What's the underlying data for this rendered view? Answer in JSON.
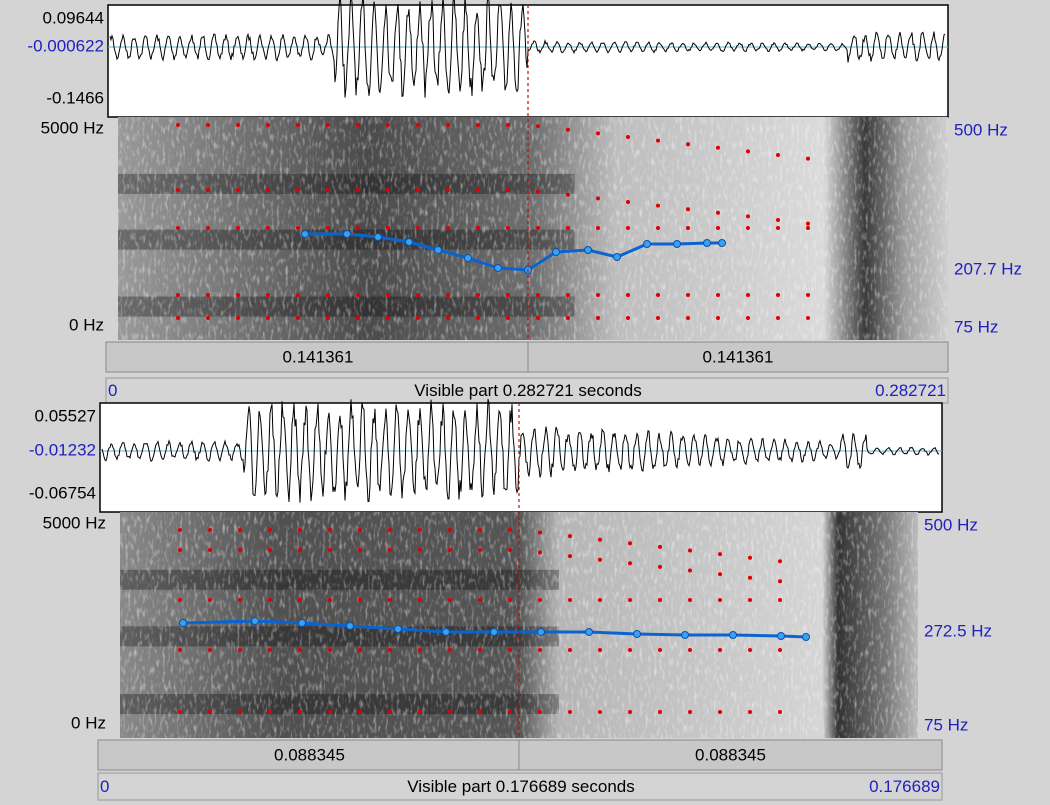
{
  "panels": [
    {
      "waveform": {
        "max": "0.09644",
        "cursor_value": "-0.000622",
        "min": "-0.1466"
      },
      "spectrogram": {
        "freq_max": "5000 Hz",
        "freq_min": "0 Hz",
        "pitch_max": "500 Hz",
        "pitch_cursor": "207.7 Hz",
        "pitch_min": "75 Hz"
      },
      "time_bar": {
        "left": "0.141361",
        "right": "0.141361"
      },
      "visible": {
        "start": "0",
        "label": "Visible part 0.282721 seconds",
        "end": "0.282721"
      }
    },
    {
      "waveform": {
        "max": "0.05527",
        "cursor_value": "-0.01232",
        "min": "-0.06754"
      },
      "spectrogram": {
        "freq_max": "5000 Hz",
        "freq_min": "0 Hz",
        "pitch_max": "500 Hz",
        "pitch_cursor": "272.5 Hz",
        "pitch_min": "75 Hz"
      },
      "time_bar": {
        "left": "0.088345",
        "right": "0.088345"
      },
      "visible": {
        "start": "0",
        "label": "Visible part 0.176689 seconds",
        "end": "0.176689"
      }
    }
  ]
}
